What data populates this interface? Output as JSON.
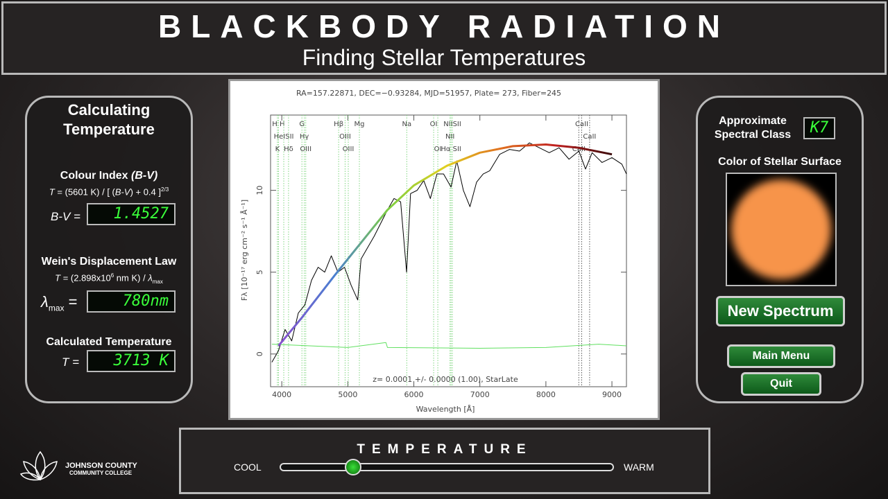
{
  "header": {
    "title": "BLACKBODY RADIATION",
    "subtitle": "Finding Stellar Temperatures"
  },
  "left_panel": {
    "title": "Calculating Temperature",
    "colour_index": {
      "heading": [
        "Colour Index ",
        "(B-V)"
      ],
      "formula": [
        "T",
        " = (5601 K) / [ (",
        "B-V",
        ") + 0.4 ]",
        "2/3"
      ],
      "label": "B-V =",
      "display": "1.4527"
    },
    "wien": {
      "heading": "Wein's Displacement Law",
      "formula": [
        "T",
        " = (2.898x10",
        "6",
        " nm K) / ",
        "λ",
        "max"
      ],
      "label": [
        "λ",
        "max",
        "="
      ],
      "display": "780nm"
    },
    "temperature": {
      "heading": "Calculated Temperature",
      "label": "T =",
      "display": "3713 K"
    }
  },
  "right_panel": {
    "spectral_class_label": "Approximate Spectral Class",
    "spectral_class": "K7",
    "surface_label": "Color of Stellar Surface",
    "surface_color": "#f7944a",
    "buttons": [
      "New Spectrum",
      "Main Menu",
      "Quit"
    ]
  },
  "slider": {
    "title": "TEMPERATURE",
    "min_label": "COOL",
    "max_label": "WARM"
  },
  "logo": {
    "line1": "JOHNSON COUNTY",
    "line2": "COMMUNITY COLLEGE"
  },
  "chart_data": {
    "type": "line",
    "title": "RA=157.22871, DEC=−0.93284, MJD=51957, Plate= 273, Fiber=245",
    "x_label": "Wavelength [Å]",
    "y_label": "Fλ [10⁻¹⁷ erg cm⁻² s⁻¹ Å⁻¹]",
    "annotation": "z= 0.0001 +/- 0.0000 (1.00), StarLate",
    "xlim": [
      3830,
      9220
    ],
    "ylim": [
      -2,
      14.6
    ],
    "xticks": [
      4000,
      5000,
      6000,
      7000,
      8000,
      9000
    ],
    "yticks": [
      0,
      5,
      10
    ],
    "spectral_lines": [
      {
        "label": "H H",
        "x": 3950,
        "row": 0,
        "color": "#7fd67f"
      },
      {
        "label": "HeISII",
        "x": 4030,
        "row": 1,
        "color": "#7fd67f"
      },
      {
        "label": "K",
        "x": 3934,
        "row": 2,
        "color": "#7fd67f"
      },
      {
        "label": "Hδ",
        "x": 4102,
        "row": 2,
        "color": "#7fd67f"
      },
      {
        "label": "G",
        "x": 4305,
        "row": 0,
        "color": "#7fd67f"
      },
      {
        "label": "Hγ",
        "x": 4341,
        "row": 1,
        "color": "#7fd67f"
      },
      {
        "label": "OIII",
        "x": 4363,
        "row": 2,
        "color": "#7fd67f"
      },
      {
        "label": "Hβ",
        "x": 4861,
        "row": 0,
        "color": "#7fd67f"
      },
      {
        "label": "OIII",
        "x": 4959,
        "row": 1,
        "color": "#7fd67f"
      },
      {
        "label": "OIII",
        "x": 5007,
        "row": 2,
        "color": "#7fd67f"
      },
      {
        "label": "Mg",
        "x": 5175,
        "row": 0,
        "color": "#7fd67f"
      },
      {
        "label": "Na",
        "x": 5893,
        "row": 0,
        "color": "#7fd67f"
      },
      {
        "label": "OI",
        "x": 6300,
        "row": 0,
        "color": "#7fd67f"
      },
      {
        "label": "OI",
        "x": 6363,
        "row": 2,
        "color": "#7fd67f"
      },
      {
        "label": "NIISII",
        "x": 6583,
        "row": 0,
        "color": "#7fd67f"
      },
      {
        "label": "NII",
        "x": 6548,
        "row": 1,
        "color": "#7fd67f"
      },
      {
        "label": "Hα SII",
        "x": 6563,
        "row": 2,
        "color": "#7fd67f"
      },
      {
        "label": "CaII",
        "x": 8542,
        "row": 0,
        "color": "#555555"
      },
      {
        "label": "CaII",
        "x": 8662,
        "row": 1,
        "color": "#555555"
      },
      {
        "label": "CaII",
        "x": 8498,
        "row": 2,
        "color": "#555555"
      }
    ],
    "series": [
      {
        "name": "spectrum",
        "color": "#000000",
        "x": [
          3850,
          3950,
          4050,
          4150,
          4250,
          4350,
          4450,
          4550,
          4650,
          4750,
          4850,
          4950,
          5050,
          5150,
          5200,
          5300,
          5400,
          5500,
          5600,
          5700,
          5800,
          5890,
          5950,
          6050,
          6150,
          6250,
          6350,
          6450,
          6563,
          6650,
          6750,
          6850,
          6950,
          7050,
          7150,
          7300,
          7450,
          7600,
          7750,
          7900,
          8050,
          8200,
          8350,
          8500,
          8600,
          8700,
          8850,
          9000,
          9150,
          9220
        ],
        "values": [
          -0.5,
          0.2,
          1.5,
          0.8,
          2.5,
          3.0,
          4.5,
          5.3,
          5.0,
          6.0,
          5.0,
          5.3,
          4.2,
          3.3,
          5.8,
          6.5,
          7.2,
          8.0,
          8.8,
          9.5,
          9.3,
          5.0,
          9.8,
          10.0,
          10.6,
          9.5,
          11.0,
          11.0,
          10.2,
          11.8,
          10.0,
          9.0,
          10.5,
          11.0,
          11.2,
          12.2,
          12.5,
          12.4,
          12.9,
          12.6,
          12.3,
          12.6,
          11.9,
          12.4,
          11.3,
          12.3,
          11.7,
          12.0,
          11.6,
          11.0
        ]
      },
      {
        "name": "sky",
        "color": "#5fe05f",
        "x": [
          3850,
          5000,
          5577,
          5600,
          7000,
          8000,
          8800,
          9220
        ],
        "values": [
          0.6,
          0.4,
          0.7,
          0.4,
          0.35,
          0.4,
          0.6,
          0.5
        ]
      },
      {
        "name": "blackbody",
        "colors": [
          "#8a4fd0",
          "#4a7fd0",
          "#7fd040",
          "#e0d020",
          "#e07020",
          "#c02020",
          "#3a0a0a"
        ],
        "x": [
          3950,
          4300,
          4800,
          5200,
          5600,
          6000,
          6500,
          7000,
          7500,
          8000,
          8500,
          9000
        ],
        "values": [
          0.5,
          2.2,
          4.8,
          6.8,
          8.8,
          10.3,
          11.5,
          12.3,
          12.7,
          12.8,
          12.6,
          12.2
        ]
      }
    ]
  }
}
